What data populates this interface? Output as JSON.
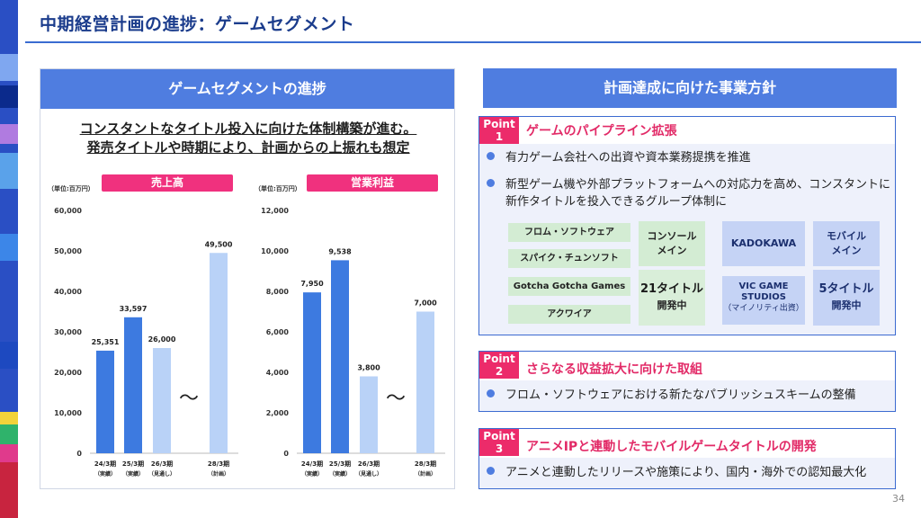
{
  "title": "中期経営計画の進捗：ゲームセグメント",
  "page_number": "34",
  "left_panel": {
    "header": "ゲームセグメントの進捗",
    "subtitle_line1": "コンスタントなタイトル投入に向けた体制構築が進む。",
    "subtitle_line2": "発売タイトルや時期により、計画からの上振れも想定",
    "unit_label": "（単位:百万円）",
    "gap_symbol": "～"
  },
  "chart_data": [
    {
      "type": "bar",
      "title": "売上高",
      "categories": [
        "24/3期",
        "25/3期",
        "26/3期",
        "28/3期"
      ],
      "category_notes": [
        "（実績）",
        "（実績）",
        "（見通し）",
        "（計画）"
      ],
      "values": [
        25351,
        33597,
        26000,
        49500
      ],
      "value_labels": [
        "25,351",
        "33,597",
        "26,000",
        "49,500"
      ],
      "bar_styles": [
        "actual",
        "actual",
        "forecast",
        "forecast"
      ],
      "ylim": [
        0,
        60000
      ],
      "yticks": [
        "0",
        "10,000",
        "20,000",
        "30,000",
        "40,000",
        "50,000",
        "60,000"
      ],
      "ytick_values": [
        0,
        10000,
        20000,
        30000,
        40000,
        50000,
        60000
      ],
      "grid": false
    },
    {
      "type": "bar",
      "title": "営業利益",
      "categories": [
        "24/3期",
        "25/3期",
        "26/3期",
        "28/3期"
      ],
      "category_notes": [
        "（実績）",
        "（実績）",
        "（見通し）",
        "（計画）"
      ],
      "values": [
        7950,
        9538,
        3800,
        7000
      ],
      "value_labels": [
        "7,950",
        "9,538",
        "3,800",
        "7,000"
      ],
      "bar_styles": [
        "actual",
        "actual",
        "forecast",
        "forecast"
      ],
      "ylim": [
        0,
        12000
      ],
      "yticks": [
        "0",
        "2,000",
        "4,000",
        "6,000",
        "8,000",
        "10,000",
        "12,000"
      ],
      "ytick_values": [
        0,
        2000,
        4000,
        6000,
        8000,
        10000,
        12000
      ],
      "grid": false
    }
  ],
  "colors": {
    "actual_bar": "#3d7ae0",
    "forecast_bar": "#b9d2f7",
    "accent_pink": "#f0317e",
    "header_blue": "#4f7de0"
  },
  "right_panel": {
    "header": "計画達成に向けた事業方針",
    "point1": {
      "tag_line1": "Point",
      "tag_line2": "1",
      "title": "ゲームのパイプライン拡張",
      "bullet1": "有力ゲーム会社への出資や資本業務提携を推進",
      "bullet2_line1": "新型ゲーム機や外部プラットフォームへの対応力を高め、コンスタントに",
      "bullet2_line2": "新作タイトルを投入できるグループ体制に",
      "studios": [
        "フロム・ソフトウェア",
        "スパイク・チュンソフト",
        "Gotcha Gotcha Games",
        "アクワイア"
      ],
      "console_label_line1": "コンソール",
      "console_label_line2": "メイン",
      "console_count": "21タイトル",
      "console_status": "開発中",
      "kadokawa": "KADOKAWA",
      "vic_line1": "VIC GAME",
      "vic_line2": "STUDIOS",
      "vic_line3": "（マイノリティ出資）",
      "mobile_label_line1": "モバイル",
      "mobile_label_line2": "メイン",
      "mobile_count": "5タイトル",
      "mobile_status": "開発中"
    },
    "point2": {
      "tag_line1": "Point",
      "tag_line2": "2",
      "title": "さらなる収益拡大に向けた取組",
      "bullet1": "フロム・ソフトウェアにおける新たなパブリッシュスキームの整備"
    },
    "point3": {
      "tag_line1": "Point",
      "tag_line2": "3",
      "title": "アニメIPと連動したモバイルゲームタイトルの開発",
      "bullet1": "アニメと連動したリリースや施策により、国内・海外での認知最大化"
    }
  }
}
